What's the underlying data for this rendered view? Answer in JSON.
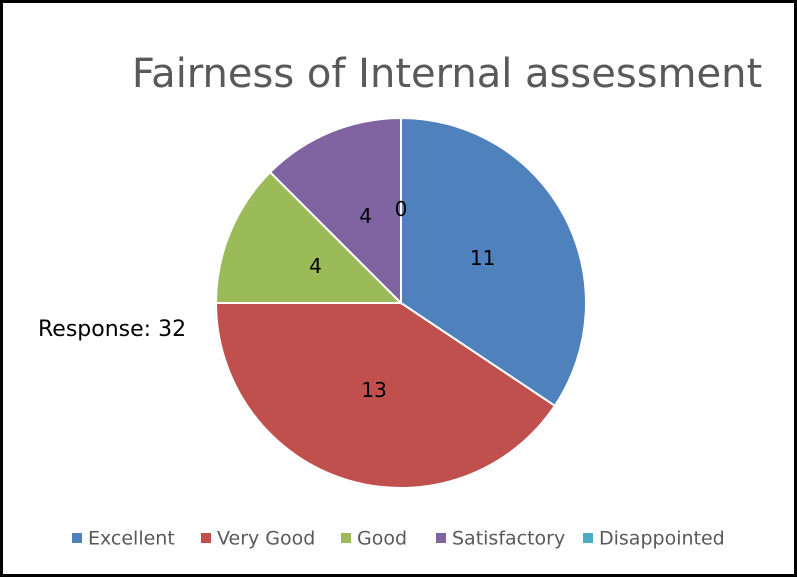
{
  "chart_data": {
    "type": "pie",
    "title": "Fairness of Internal assessment",
    "categories": [
      "Excellent",
      "Very Good",
      "Good",
      "Satisfactory",
      "Disappointed"
    ],
    "values": [
      11,
      13,
      4,
      4,
      0
    ],
    "colors": [
      "#4f81bd",
      "#c0504d",
      "#9bbb59",
      "#8064a2",
      "#4bacc6"
    ],
    "annotation": "Response: 32",
    "legend": "bottom"
  }
}
